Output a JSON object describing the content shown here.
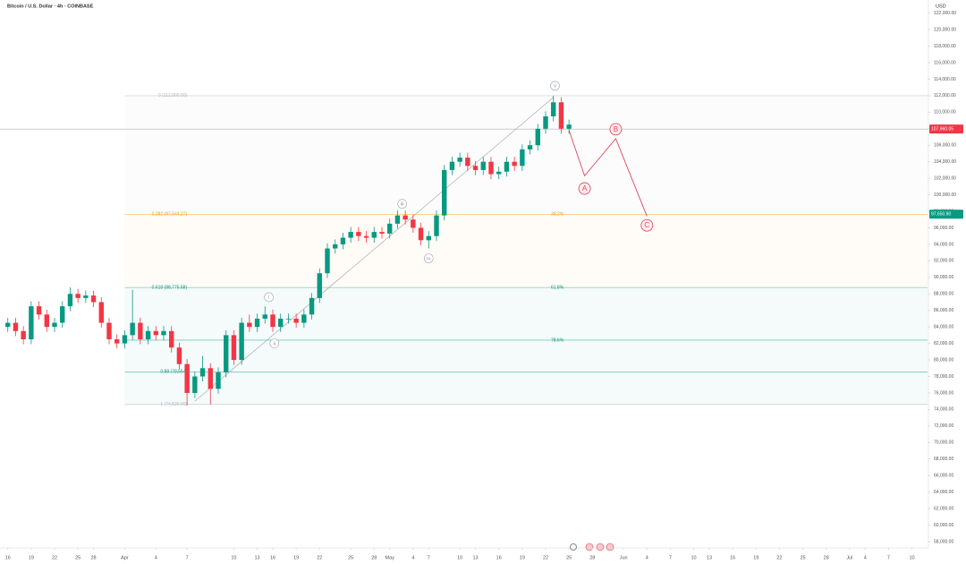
{
  "chart_data": {
    "type": "candlestick",
    "title": "Bitcoin / U.S. Dollar · 4h · COINBASE",
    "currency": "USD",
    "x": [
      0,
      1,
      2,
      3,
      4,
      5,
      6,
      7,
      8,
      9,
      10,
      11,
      12,
      13,
      14,
      15,
      16,
      17,
      18,
      19,
      20,
      21,
      22,
      23,
      24,
      25,
      26,
      27,
      28,
      29,
      30,
      31,
      32,
      33,
      34,
      35,
      36,
      37,
      38,
      39,
      40,
      41,
      42,
      43,
      44,
      45,
      46,
      47,
      48,
      49,
      50,
      51,
      52,
      53,
      54,
      55,
      56,
      57,
      58,
      59,
      60,
      61,
      62,
      63,
      64,
      65,
      66,
      67,
      68,
      69,
      70,
      71,
      72
    ],
    "open": [
      84000,
      84500,
      83500,
      82500,
      86500,
      85500,
      84000,
      84500,
      86500,
      88000,
      87500,
      87800,
      87000,
      84500,
      82500,
      82000,
      83000,
      84500,
      82500,
      83500,
      83000,
      83500,
      81500,
      79500,
      76000,
      78000,
      79000,
      76500,
      78500,
      83000,
      80000,
      84500,
      84000,
      85000,
      85500,
      84000,
      85000,
      85000,
      84500,
      85500,
      87500,
      90500,
      93500,
      94000,
      94800,
      95500,
      95000,
      94800,
      95500,
      95300,
      96500,
      97500,
      97000,
      96000,
      94500,
      95000,
      97500,
      103000,
      104000,
      104500,
      103500,
      103000,
      104000,
      102500,
      102800,
      104000,
      103500,
      105500,
      106000,
      108000,
      109500,
      111200,
      108000
    ],
    "high": [
      85100,
      85100,
      84100,
      87100,
      87100,
      86100,
      85100,
      87100,
      88800,
      88600,
      88400,
      88400,
      87600,
      85100,
      83100,
      83600,
      88500,
      85100,
      84100,
      84100,
      84100,
      84100,
      82100,
      80100,
      78600,
      80500,
      79600,
      79100,
      83600,
      83600,
      85100,
      85500,
      85600,
      86500,
      86100,
      85600,
      85600,
      85600,
      86100,
      88100,
      91100,
      94100,
      94600,
      95400,
      96100,
      96100,
      95600,
      96100,
      96100,
      97100,
      98100,
      98100,
      97600,
      96600,
      95600,
      98100,
      103600,
      104600,
      105100,
      105100,
      104100,
      104600,
      104600,
      103400,
      104600,
      104600,
      106100,
      106600,
      108600,
      110100,
      112000,
      111800,
      109100
    ],
    "low": [
      83400,
      82900,
      81900,
      81900,
      84900,
      83400,
      83400,
      83900,
      85900,
      86900,
      86900,
      86400,
      83900,
      81900,
      81400,
      81400,
      82400,
      81900,
      81900,
      82400,
      82400,
      80900,
      78900,
      74500,
      75400,
      77400,
      74600,
      75900,
      77900,
      79400,
      79400,
      83400,
      83400,
      84400,
      83400,
      83400,
      84400,
      83900,
      83900,
      84900,
      86900,
      89900,
      92900,
      93400,
      94200,
      94400,
      94200,
      94200,
      94700,
      94700,
      95900,
      96400,
      95400,
      93900,
      93500,
      94400,
      96900,
      102400,
      103400,
      102900,
      102400,
      102400,
      101900,
      101900,
      102200,
      102900,
      102900,
      104900,
      105400,
      107400,
      108900,
      107400,
      107400
    ],
    "close": [
      84500,
      83500,
      82500,
      86500,
      85500,
      84000,
      84500,
      86500,
      88000,
      87500,
      87800,
      87000,
      84500,
      82500,
      82000,
      83000,
      84500,
      82500,
      83500,
      83000,
      83500,
      81500,
      79500,
      76000,
      78000,
      79000,
      76500,
      78500,
      83000,
      80000,
      84500,
      84000,
      85000,
      85500,
      84000,
      85000,
      85000,
      84500,
      85500,
      87500,
      90500,
      93500,
      94000,
      94800,
      95500,
      95000,
      94800,
      95500,
      95300,
      96500,
      97500,
      97000,
      96000,
      94500,
      95000,
      97500,
      103000,
      104000,
      104500,
      103500,
      103000,
      104000,
      102500,
      102800,
      104000,
      103500,
      105500,
      106000,
      108000,
      109500,
      111200,
      108000,
      108500
    ],
    "up_color": "#089981",
    "down_color": "#f23645",
    "xlim": [
      -1,
      118
    ],
    "xticks": [
      {
        "value": 0,
        "label": "16"
      },
      {
        "value": 3,
        "label": "19"
      },
      {
        "value": 6,
        "label": "22"
      },
      {
        "value": 9,
        "label": "25"
      },
      {
        "value": 11,
        "label": "28"
      },
      {
        "value": 15,
        "label": "Apr"
      },
      {
        "value": 19,
        "label": "4"
      },
      {
        "value": 23,
        "label": "7"
      },
      {
        "value": 29,
        "label": "10"
      },
      {
        "value": 32,
        "label": "13"
      },
      {
        "value": 34,
        "label": "16"
      },
      {
        "value": 37,
        "label": "19"
      },
      {
        "value": 40,
        "label": "22"
      },
      {
        "value": 44,
        "label": "25"
      },
      {
        "value": 47,
        "label": "28"
      },
      {
        "value": 49,
        "label": "May"
      },
      {
        "value": 52,
        "label": "4"
      },
      {
        "value": 54,
        "label": "7"
      },
      {
        "value": 58,
        "label": "10"
      },
      {
        "value": 60,
        "label": "13"
      },
      {
        "value": 63,
        "label": "16"
      },
      {
        "value": 66,
        "label": "19"
      },
      {
        "value": 69,
        "label": "22"
      },
      {
        "value": 72,
        "label": "25"
      },
      {
        "value": 75,
        "label": "28"
      },
      {
        "value": 79,
        "label": "Jun"
      },
      {
        "value": 82,
        "label": "4"
      },
      {
        "value": 85,
        "label": "7"
      },
      {
        "value": 88,
        "label": "10"
      },
      {
        "value": 90,
        "label": "13"
      },
      {
        "value": 93,
        "label": "16"
      },
      {
        "value": 96,
        "label": "19"
      },
      {
        "value": 99,
        "label": "22"
      },
      {
        "value": 102,
        "label": "25"
      },
      {
        "value": 105,
        "label": "28"
      },
      {
        "value": 108,
        "label": "Jul"
      },
      {
        "value": 110,
        "label": "4"
      },
      {
        "value": 113,
        "label": "7"
      },
      {
        "value": 116,
        "label": "10"
      }
    ],
    "ylim": [
      57240,
      123590
    ],
    "yticks": [
      {
        "value": 58000,
        "label": "58,000.00"
      },
      {
        "value": 60000,
        "label": "60,000.00"
      },
      {
        "value": 62000,
        "label": "62,000.00"
      },
      {
        "value": 64000,
        "label": "64,000.00"
      },
      {
        "value": 66000,
        "label": "66,000.00"
      },
      {
        "value": 68000,
        "label": "68,000.00"
      },
      {
        "value": 70000,
        "label": "70,000.00"
      },
      {
        "value": 72000,
        "label": "72,000.00"
      },
      {
        "value": 74000,
        "label": "74,000.00"
      },
      {
        "value": 76000,
        "label": "76,000.00"
      },
      {
        "value": 78000,
        "label": "78,000.00"
      },
      {
        "value": 80000,
        "label": "80,000.00"
      },
      {
        "value": 82000,
        "label": "82,000.00"
      },
      {
        "value": 84000,
        "label": "84,000.00"
      },
      {
        "value": 86000,
        "label": "86,000.00"
      },
      {
        "value": 88000,
        "label": "88,000.00"
      },
      {
        "value": 90000,
        "label": "90,000.00"
      },
      {
        "value": 92000,
        "label": "92,000.00"
      },
      {
        "value": 94000,
        "label": "94,000.00"
      },
      {
        "value": 96000,
        "label": "96,000.00"
      },
      {
        "value": 98000,
        "label": "98,000.00"
      },
      {
        "value": 100000,
        "label": "100,000.00"
      },
      {
        "value": 102000,
        "label": "102,000.00"
      },
      {
        "value": 104000,
        "label": "104,000.00"
      },
      {
        "value": 106000,
        "label": "106,000.00"
      },
      {
        "value": 108000,
        "label": "108,000.00"
      },
      {
        "value": 110000,
        "label": "110,000.00"
      },
      {
        "value": 112000,
        "label": "112,000.00"
      },
      {
        "value": 114000,
        "label": "114,000.00"
      },
      {
        "value": 116000,
        "label": "116,000.00"
      },
      {
        "value": 118000,
        "label": "118,000.00"
      },
      {
        "value": 120000,
        "label": "120,000.00"
      },
      {
        "value": 122000,
        "label": "122,000.00"
      }
    ],
    "grid": false,
    "fib_levels": [
      {
        "price": 112000,
        "label": "0 (112,000.00)",
        "color": "#b2b5be"
      },
      {
        "price": 97644.27,
        "label": "0.382 (97,644.27)",
        "pct": "38.2%",
        "color": "#f7a21b"
      },
      {
        "price": 88775.58,
        "label": "0.618 (88,775.58)",
        "pct": "61.8%",
        "color": "#089981"
      },
      {
        "price": 82400,
        "pct": "78.6%",
        "color": "#089981"
      },
      {
        "price": 78554,
        "label": "0.88 (78,554)",
        "color": "#089981"
      },
      {
        "price": 74620,
        "label": "1 (74,620.00)",
        "color": "#b2b5be"
      }
    ],
    "price_tags": [
      {
        "price": 107960.05,
        "label": "107,960.05",
        "color": "#f23645"
      },
      {
        "price": 97650.9,
        "label": "97,650.90",
        "color": "#089981"
      }
    ],
    "trend_line": {
      "x": [
        24,
        70
      ],
      "y": [
        75000,
        111800
      ]
    },
    "waves": [
      {
        "label": "i",
        "x": 33.5,
        "y": 87600
      },
      {
        "label": "ii",
        "x": 34.2,
        "y": 82000
      },
      {
        "label": "iii",
        "x": 50.6,
        "y": 98900
      },
      {
        "label": "iv",
        "x": 54,
        "y": 92300
      },
      {
        "label": "v",
        "x": 70.2,
        "y": 113200
      }
    ],
    "projection": {
      "x": [
        72,
        74,
        78,
        82
      ],
      "y": [
        107800,
        102300,
        106800,
        97400
      ],
      "color": "#e0435a"
    },
    "projection_labels": [
      {
        "label": "A",
        "x": 74,
        "y": 100760
      },
      {
        "label": "B",
        "x": 78,
        "y": 107940
      },
      {
        "label": "C",
        "x": 82,
        "y": 96300
      }
    ]
  }
}
